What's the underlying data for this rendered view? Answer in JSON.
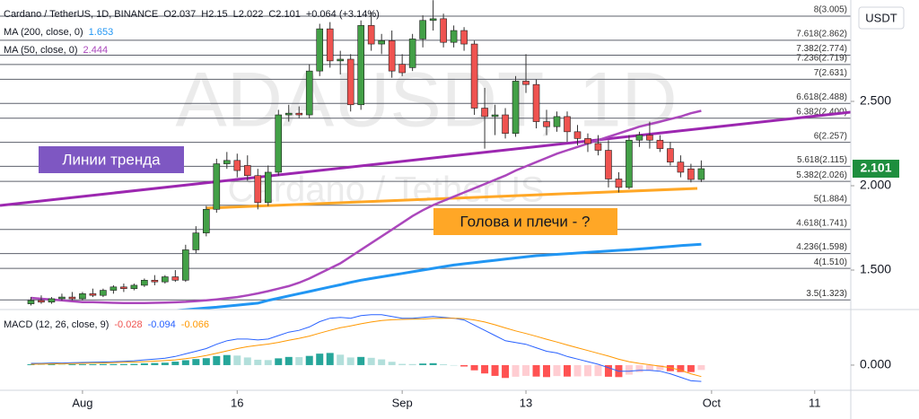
{
  "chart_data": {
    "type": "candlestick",
    "header": {
      "name": "Cardano / TetherUS, 1D, BINANCE",
      "ohlc_labels": [
        "O",
        "H",
        "L",
        "C"
      ],
      "change": "+0.064 (+3.14%)"
    },
    "currency": "USDT",
    "watermark": {
      "symbol": "ADAUSDT, 1D",
      "name": "Cardano / TetherUS"
    },
    "annotations": [
      "Линии тренда",
      "Голова и плечи - ?"
    ],
    "up_color": "#43a047",
    "down_color": "#ef5350",
    "open": [
      1.3,
      1.32,
      1.31,
      1.33,
      1.34,
      1.33,
      1.36,
      1.35,
      1.38,
      1.4,
      1.39,
      1.41,
      1.44,
      1.43,
      1.46,
      1.44,
      1.62,
      1.72,
      1.86,
      2.13,
      2.15,
      2.12,
      2.06,
      1.9,
      2.08,
      2.42,
      2.43,
      2.42,
      2.68,
      2.93,
      2.74,
      2.75,
      2.48,
      2.95,
      2.84,
      2.86,
      2.72,
      2.7,
      2.87,
      2.98,
      2.99,
      2.85,
      2.92,
      2.84,
      2.46,
      2.41,
      2.42,
      2.31,
      2.62,
      2.6,
      2.38,
      2.35,
      2.41,
      2.32,
      2.28,
      2.25,
      2.21,
      2.04,
      1.99,
      2.27,
      2.3,
      2.27,
      2.22,
      2.14,
      2.1,
      2.037
    ],
    "high": [
      1.34,
      1.35,
      1.34,
      1.36,
      1.37,
      1.37,
      1.39,
      1.39,
      1.41,
      1.42,
      1.42,
      1.45,
      1.47,
      1.47,
      1.5,
      1.65,
      1.76,
      1.88,
      2.16,
      2.2,
      2.19,
      2.18,
      2.1,
      2.12,
      2.45,
      2.48,
      2.47,
      2.72,
      2.96,
      2.97,
      2.8,
      2.78,
      2.98,
      3.03,
      2.9,
      2.92,
      2.78,
      2.9,
      3.01,
      3.1,
      3.02,
      2.95,
      2.94,
      2.86,
      2.58,
      2.48,
      2.46,
      2.65,
      2.78,
      2.63,
      2.45,
      2.44,
      2.44,
      2.36,
      2.31,
      2.3,
      2.27,
      2.08,
      2.3,
      2.32,
      2.38,
      2.3,
      2.26,
      2.18,
      2.13,
      2.15
    ],
    "low": [
      1.29,
      1.3,
      1.3,
      1.32,
      1.32,
      1.32,
      1.34,
      1.34,
      1.36,
      1.37,
      1.38,
      1.4,
      1.41,
      1.42,
      1.43,
      1.43,
      1.6,
      1.7,
      1.84,
      2.1,
      2.05,
      2.03,
      1.86,
      1.88,
      2.06,
      2.38,
      2.4,
      2.4,
      2.65,
      2.7,
      2.66,
      2.44,
      2.45,
      2.8,
      2.78,
      2.64,
      2.65,
      2.68,
      2.82,
      2.92,
      2.82,
      2.82,
      2.8,
      2.42,
      2.22,
      2.3,
      2.28,
      2.29,
      2.55,
      2.34,
      2.3,
      2.32,
      2.26,
      2.24,
      2.2,
      2.18,
      1.99,
      1.96,
      1.98,
      2.23,
      2.22,
      2.2,
      2.12,
      2.05,
      2.02,
      2.022
    ],
    "close": [
      1.32,
      1.31,
      1.33,
      1.34,
      1.33,
      1.36,
      1.35,
      1.38,
      1.4,
      1.39,
      1.41,
      1.44,
      1.43,
      1.46,
      1.44,
      1.62,
      1.72,
      1.86,
      2.13,
      2.15,
      2.09,
      2.06,
      1.9,
      2.08,
      2.42,
      2.43,
      2.42,
      2.68,
      2.93,
      2.74,
      2.75,
      2.48,
      2.95,
      2.84,
      2.86,
      2.68,
      2.67,
      2.87,
      2.98,
      2.99,
      2.85,
      2.92,
      2.84,
      2.46,
      2.41,
      2.42,
      2.31,
      2.62,
      2.6,
      2.38,
      2.35,
      2.41,
      2.32,
      2.28,
      2.25,
      2.21,
      2.04,
      1.99,
      2.27,
      2.3,
      2.27,
      2.22,
      2.14,
      2.08,
      2.037,
      2.101
    ],
    "overlays": [
      {
        "name": "MA (200, close, 0)",
        "color": "#2196f3",
        "values": [
          null,
          null,
          null,
          null,
          null,
          null,
          null,
          null,
          null,
          null,
          null,
          null,
          null,
          null,
          1.26,
          1.265,
          1.27,
          1.275,
          1.28,
          1.286,
          1.292,
          1.298,
          1.304,
          1.32,
          1.333,
          1.347,
          1.36,
          1.373,
          1.387,
          1.4,
          1.413,
          1.427,
          1.44,
          1.45,
          1.46,
          1.47,
          1.48,
          1.49,
          1.5,
          1.51,
          1.52,
          1.53,
          1.537,
          1.544,
          1.551,
          1.558,
          1.565,
          1.572,
          1.579,
          1.585,
          1.589,
          1.593,
          1.597,
          1.601,
          1.605,
          1.609,
          1.613,
          1.617,
          1.62,
          1.625,
          1.63,
          1.635,
          1.64,
          1.645,
          1.649,
          1.653
        ]
      },
      {
        "name": "MA (50, close, 0)",
        "color": "#ab47bc",
        "values": [
          1.335,
          1.33,
          1.325,
          1.32,
          1.315,
          1.31,
          1.31,
          1.308,
          1.306,
          1.305,
          1.305,
          1.305,
          1.306,
          1.307,
          1.309,
          1.312,
          1.316,
          1.32,
          1.326,
          1.333,
          1.34,
          1.35,
          1.362,
          1.375,
          1.39,
          1.405,
          1.425,
          1.45,
          1.48,
          1.51,
          1.54,
          1.58,
          1.62,
          1.66,
          1.7,
          1.74,
          1.78,
          1.82,
          1.855,
          1.885,
          1.91,
          1.935,
          1.96,
          1.985,
          2.01,
          2.035,
          2.06,
          2.09,
          2.115,
          2.14,
          2.165,
          2.19,
          2.21,
          2.23,
          2.25,
          2.27,
          2.29,
          2.31,
          2.33,
          2.35,
          2.365,
          2.38,
          2.395,
          2.41,
          2.43,
          2.444
        ]
      }
    ],
    "fib_levels": [
      {
        "value": 3.005,
        "label": "8(3.005)"
      },
      {
        "value": 2.862,
        "label": "7.618(2.862)"
      },
      {
        "value": 2.774,
        "label": "7.382(2.774)"
      },
      {
        "value": 2.719,
        "label": "7.236(2.719)"
      },
      {
        "value": 2.631,
        "label": "7(2.631)"
      },
      {
        "value": 2.488,
        "label": "6.618(2.488)"
      },
      {
        "value": 2.4,
        "label": "6.382(2.400)"
      },
      {
        "value": 2.257,
        "label": "6(2.257)"
      },
      {
        "value": 2.115,
        "label": "5.618(2.115)"
      },
      {
        "value": 2.026,
        "label": "5.382(2.026)"
      },
      {
        "value": 1.884,
        "label": "5(1.884)"
      },
      {
        "value": 1.741,
        "label": "4.618(1.741)"
      },
      {
        "value": 1.598,
        "label": "4.236(1.598)"
      },
      {
        "value": 1.51,
        "label": "4(1.510)"
      },
      {
        "value": 1.323,
        "label": "3.5(1.323)"
      }
    ],
    "xlim": [
      -3,
      79.5
    ],
    "xticks": [
      {
        "value": 5,
        "label": "Aug"
      },
      {
        "value": 20,
        "label": "16"
      },
      {
        "value": 36,
        "label": "Sep"
      },
      {
        "value": 48,
        "label": "13"
      },
      {
        "value": 66,
        "label": "Oct"
      },
      {
        "value": 76,
        "label": "11"
      }
    ],
    "ylim": [
      1.266,
      3.101
    ],
    "yticks": [
      {
        "value": 2.5,
        "label": "2.500"
      },
      {
        "value": 2.0,
        "label": "2.000"
      },
      {
        "value": 1.5,
        "label": "1.500"
      }
    ],
    "macd": {
      "name": "MACD (12, 26, close, 9)",
      "ylim": [
        -0.145,
        0.32
      ],
      "yticks": [
        {
          "value": 0,
          "label": "0.000"
        }
      ],
      "histogram_colors": [
        "#26a69a",
        "#b2dfdb",
        "#ff5252",
        "#ffcdd2"
      ],
      "histogram": {
        "color": "#ef5350",
        "values": [
          0.005,
          0.004,
          0.005,
          0.004,
          0.005,
          0.005,
          0.005,
          0.006,
          0.006,
          0.006,
          0.007,
          0.01,
          0.012,
          0.014,
          0.02,
          0.028,
          0.035,
          0.04,
          0.052,
          0.058,
          0.055,
          0.044,
          0.031,
          0.029,
          0.039,
          0.047,
          0.046,
          0.053,
          0.066,
          0.07,
          0.06,
          0.044,
          0.047,
          0.042,
          0.033,
          0.019,
          0.007,
          0.006,
          0.009,
          0.011,
          0.005,
          0,
          -0.008,
          -0.03,
          -0.048,
          -0.062,
          -0.074,
          -0.067,
          -0.062,
          -0.066,
          -0.069,
          -0.063,
          -0.066,
          -0.065,
          -0.064,
          -0.063,
          -0.067,
          -0.069,
          -0.055,
          -0.04,
          -0.032,
          -0.029,
          -0.035,
          -0.04,
          -0.04,
          -0.028
        ]
      },
      "macd_line": {
        "color": "#2962ff",
        "values": [
          0.01,
          0.01,
          0.012,
          0.012,
          0.014,
          0.015,
          0.016,
          0.018,
          0.02,
          0.022,
          0.025,
          0.03,
          0.035,
          0.04,
          0.05,
          0.065,
          0.08,
          0.095,
          0.12,
          0.14,
          0.15,
          0.15,
          0.145,
          0.15,
          0.17,
          0.19,
          0.2,
          0.22,
          0.25,
          0.27,
          0.275,
          0.27,
          0.285,
          0.29,
          0.29,
          0.28,
          0.27,
          0.27,
          0.275,
          0.28,
          0.275,
          0.27,
          0.26,
          0.23,
          0.2,
          0.17,
          0.14,
          0.13,
          0.12,
          0.1,
          0.08,
          0.07,
          0.05,
          0.035,
          0.02,
          0.005,
          -0.015,
          -0.035,
          -0.035,
          -0.03,
          -0.03,
          -0.035,
          -0.05,
          -0.07,
          -0.09,
          -0.094
        ]
      },
      "signal": {
        "color": "#ff9800",
        "values": [
          0.005,
          0.006,
          0.007,
          0.008,
          0.009,
          0.01,
          0.011,
          0.012,
          0.014,
          0.016,
          0.018,
          0.02,
          0.023,
          0.026,
          0.03,
          0.037,
          0.045,
          0.055,
          0.068,
          0.082,
          0.095,
          0.106,
          0.114,
          0.121,
          0.131,
          0.143,
          0.154,
          0.167,
          0.184,
          0.2,
          0.215,
          0.226,
          0.238,
          0.248,
          0.257,
          0.261,
          0.263,
          0.264,
          0.266,
          0.269,
          0.27,
          0.27,
          0.268,
          0.26,
          0.248,
          0.232,
          0.214,
          0.197,
          0.182,
          0.166,
          0.149,
          0.133,
          0.116,
          0.1,
          0.084,
          0.068,
          0.052,
          0.034,
          0.02,
          0.01,
          0.002,
          -0.006,
          -0.015,
          -0.03,
          -0.05,
          -0.066
        ]
      }
    }
  }
}
